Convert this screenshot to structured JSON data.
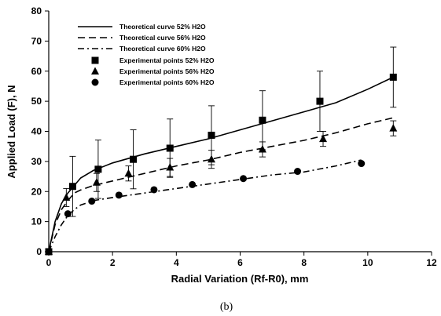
{
  "caption": "(b)",
  "chart_data": {
    "type": "line",
    "xlabel": "Radial Variation (Rf-R0), mm",
    "ylabel": "Applied Load (F), N",
    "xlim": [
      0,
      12
    ],
    "ylim": [
      0,
      80
    ],
    "x_ticks": [
      "0",
      "2",
      "4",
      "6",
      "8",
      "10",
      "12"
    ],
    "y_ticks": [
      "0",
      "10",
      "20",
      "30",
      "40",
      "50",
      "60",
      "70",
      "80"
    ],
    "grid": false,
    "legend_position": "top-left",
    "curves": [
      {
        "name": "Theoretical curve 52% H2O",
        "style": "solid",
        "x": [
          0,
          0.2,
          0.4,
          0.6,
          0.8,
          1.0,
          1.4,
          2.0,
          3.0,
          4.0,
          5.0,
          6.0,
          7.0,
          8.0,
          9.0,
          10.0,
          10.8
        ],
        "y": [
          0,
          10,
          16,
          19.5,
          22,
          24.5,
          27,
          29.5,
          32.5,
          35,
          37.5,
          40.5,
          43.5,
          46.5,
          49.5,
          54,
          58
        ]
      },
      {
        "name": "Theoretical curve 56% H2O",
        "style": "dashed",
        "x": [
          0,
          0.2,
          0.4,
          0.6,
          0.8,
          1.0,
          1.4,
          2.0,
          3.0,
          4.0,
          5.0,
          6.0,
          7.0,
          8.0,
          9.0,
          10.0,
          10.8
        ],
        "y": [
          0,
          9,
          14,
          17,
          19.5,
          20.5,
          22,
          23.5,
          26,
          28.5,
          30.5,
          33,
          35,
          37,
          39.5,
          42.5,
          44.5
        ]
      },
      {
        "name": "Theoretical curve 60% H2O",
        "style": "dashdot",
        "x": [
          0,
          0.2,
          0.4,
          0.6,
          0.8,
          1.0,
          1.4,
          2.0,
          3.0,
          4.0,
          5.0,
          6.0,
          7.0,
          8.0,
          9.0,
          9.8
        ],
        "y": [
          0,
          5,
          9,
          12,
          14,
          15.5,
          17,
          18,
          19.5,
          21,
          22.5,
          24,
          25.5,
          26.5,
          28.5,
          30.5
        ]
      }
    ],
    "points": [
      {
        "name": "Experimental points 52% H2O",
        "marker": "square",
        "x": [
          0,
          0.75,
          1.55,
          2.65,
          3.8,
          5.1,
          6.7,
          8.5,
          10.8
        ],
        "y": [
          0,
          21.7,
          27.4,
          30.7,
          34.4,
          38.7,
          43.7,
          50,
          58
        ],
        "err": [
          0,
          10,
          9.7,
          9.8,
          9.7,
          9.8,
          9.8,
          10,
          10
        ]
      },
      {
        "name": "Experimental points 56% H2O",
        "marker": "triangle",
        "x": [
          0,
          0.55,
          1.5,
          2.5,
          3.8,
          5.1,
          6.7,
          8.6,
          10.8
        ],
        "y": [
          0,
          18,
          23,
          26,
          28,
          30.7,
          34,
          37.5,
          41
        ],
        "err": [
          0,
          3,
          3,
          2.5,
          3,
          3,
          2.5,
          2.5,
          2.5
        ]
      },
      {
        "name": "Experimental points 60% H2O",
        "marker": "circle",
        "x": [
          0,
          0.6,
          1.35,
          2.2,
          3.3,
          4.5,
          6.1,
          7.8,
          9.8
        ],
        "y": [
          0,
          12.6,
          16.8,
          18.8,
          20.6,
          22.3,
          24.3,
          26.7,
          29.3
        ],
        "err": [
          0,
          0,
          0,
          0,
          0,
          0,
          0,
          0,
          0
        ]
      }
    ]
  }
}
